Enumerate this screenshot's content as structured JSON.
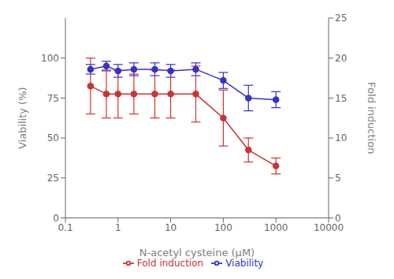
{
  "chart_data": {
    "type": "line",
    "x": [
      0.3,
      0.6,
      1,
      2,
      5,
      10,
      30,
      100,
      300,
      1000
    ],
    "xlabel": "N-acetyl cysteine (μM)",
    "ylabel": "Viability (%)",
    "y2label": "Fold induction",
    "log": "x",
    "xlim": [
      0.1,
      10000
    ],
    "xticks": [
      0.1,
      1,
      10,
      100,
      1000,
      10000
    ],
    "ylim": [
      0,
      125
    ],
    "yticks": [
      0,
      25,
      50,
      75,
      100
    ],
    "y2lim": [
      0,
      25
    ],
    "y2ticks": [
      0,
      5,
      10,
      15,
      20,
      25
    ],
    "grid": false,
    "legend": "bottom",
    "series": [
      {
        "name": "Viability",
        "color": "#3333cc",
        "marker": "circle",
        "values": [
          93,
          95,
          92,
          93,
          93,
          92,
          93,
          86,
          75,
          74
        ],
        "errors": [
          3,
          3,
          4,
          4,
          4,
          4,
          4,
          5,
          8,
          5
        ]
      },
      {
        "name": "Fold induction",
        "axis": "y2",
        "color": "#cc3333",
        "marker": "circle",
        "values": [
          16.5,
          15.5,
          15.5,
          15.5,
          15.5,
          15.5,
          15.5,
          12.5,
          8.5,
          6.5
        ],
        "errors": [
          3.5,
          3.0,
          3.0,
          2.5,
          3.0,
          3.0,
          3.5,
          3.5,
          1.5,
          1.0
        ]
      }
    ]
  }
}
